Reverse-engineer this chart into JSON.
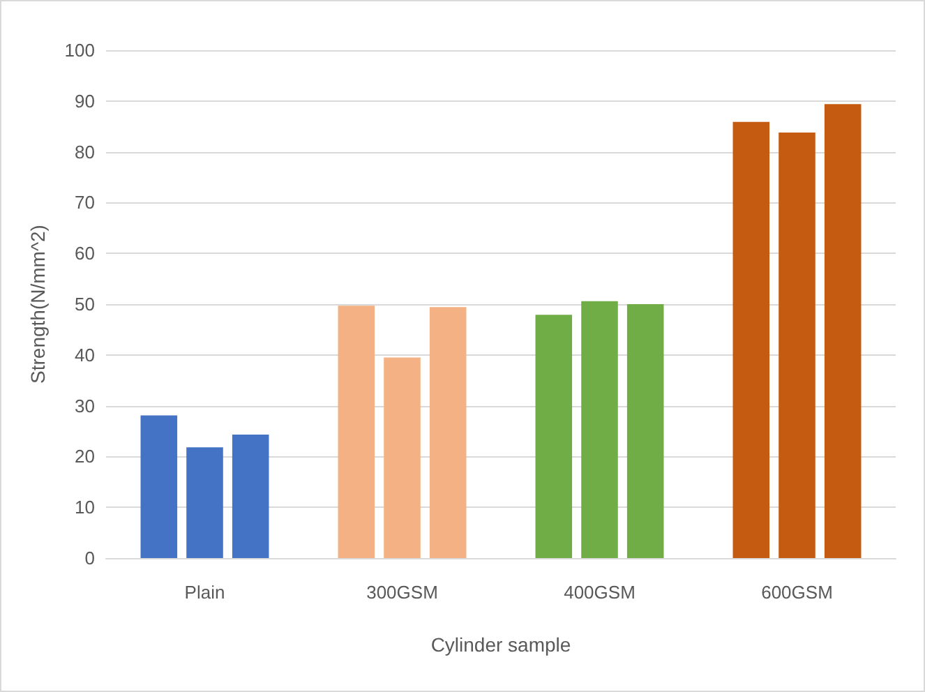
{
  "chart_data": {
    "type": "bar",
    "xlabel": "Cylinder sample",
    "ylabel": "Strength(N/mm^2)",
    "categories": [
      "Plain",
      "300GSM",
      "400GSM",
      "600GSM"
    ],
    "series": [
      {
        "colors": [
          "#4472c4",
          "#f4b183",
          "#70ad47",
          "#c55a11"
        ],
        "values": [
          28.1,
          49.7,
          47.9,
          85.9
        ]
      },
      {
        "colors": [
          "#4472c4",
          "#f4b183",
          "#70ad47",
          "#c55a11"
        ],
        "values": [
          21.8,
          39.5,
          50.6,
          83.8
        ]
      },
      {
        "colors": [
          "#4472c4",
          "#f4b183",
          "#70ad47",
          "#c55a11"
        ],
        "values": [
          24.3,
          49.4,
          50.0,
          89.4
        ]
      }
    ],
    "ylim": [
      0,
      100
    ],
    "yticks": [
      0,
      10,
      20,
      30,
      40,
      50,
      60,
      70,
      80,
      90,
      100
    ],
    "grid": "y"
  }
}
